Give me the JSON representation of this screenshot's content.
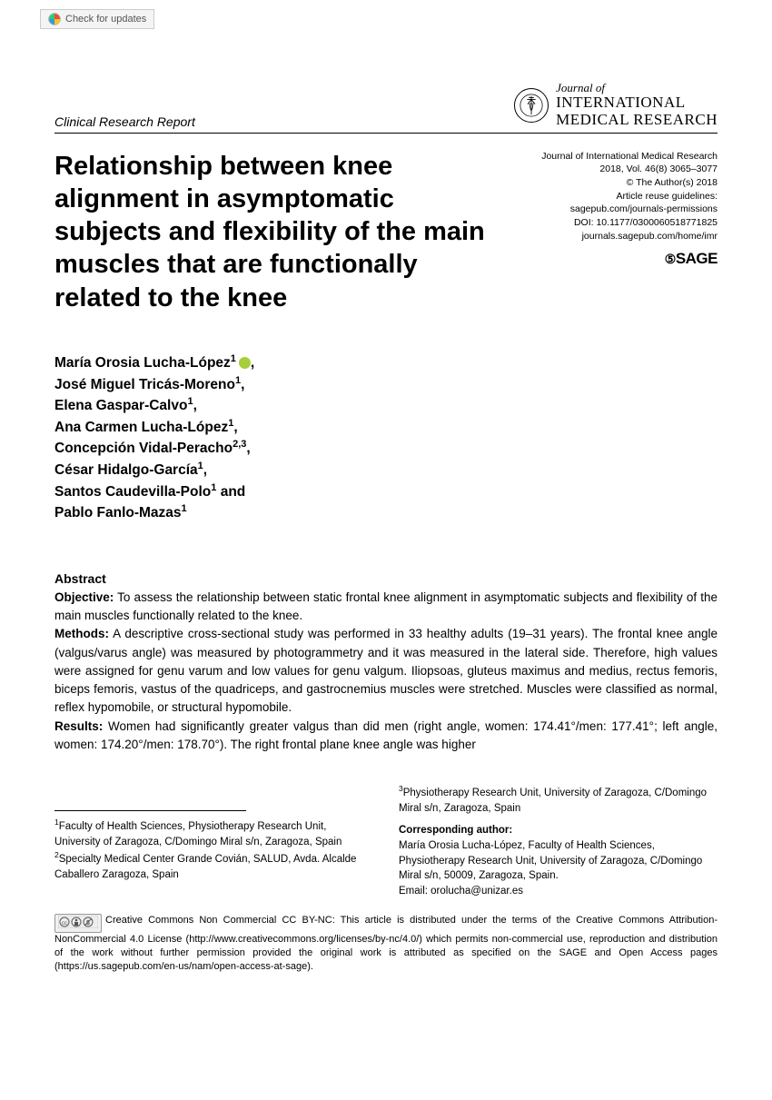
{
  "check_updates": "Check for updates",
  "report_type": "Clinical Research Report",
  "journal": {
    "prefix": "Journal of",
    "line1": "INTERNATIONAL",
    "line2": "MEDICAL RESEARCH"
  },
  "meta": {
    "line1": "Journal of International Medical Research",
    "line2": "2018, Vol. 46(8) 3065–3077",
    "line3": "© The Author(s) 2018",
    "line4": "Article reuse guidelines:",
    "line5": "sagepub.com/journals-permissions",
    "line6": "DOI: 10.1177/0300060518771825",
    "line7": "journals.sagepub.com/home/imr",
    "publisher": "SAGE"
  },
  "title": "Relationship between knee alignment in asymptomatic subjects and flexibility of the main muscles that are functionally related to the knee",
  "authors": [
    {
      "name": "María Orosia Lucha-López",
      "affil": "1",
      "orcid": true,
      "sep": ","
    },
    {
      "name": "José Miguel Tricás-Moreno",
      "affil": "1",
      "sep": ","
    },
    {
      "name": "Elena Gaspar-Calvo",
      "affil": "1",
      "sep": ","
    },
    {
      "name": "Ana Carmen Lucha-López",
      "affil": "1",
      "sep": ","
    },
    {
      "name": "Concepción Vidal-Peracho",
      "affil": "2,3",
      "sep": ","
    },
    {
      "name": "César Hidalgo-García",
      "affil": "1",
      "sep": ","
    },
    {
      "name": "Santos Caudevilla-Polo",
      "affil": "1",
      "sep": " and"
    },
    {
      "name": "Pablo Fanlo-Mazas",
      "affil": "1",
      "sep": ""
    }
  ],
  "abstract": {
    "heading": "Abstract",
    "objective_label": "Objective:",
    "objective": " To assess the relationship between static frontal knee alignment in asymptomatic subjects and flexibility of the main muscles functionally related to the knee.",
    "methods_label": "Methods:",
    "methods": " A descriptive cross-sectional study was performed in 33 healthy adults (19–31 years). The frontal knee angle (valgus/varus angle) was measured by photogrammetry and it was measured in the lateral side. Therefore, high values were assigned for genu varum and low values for genu valgum. Iliopsoas, gluteus maximus and medius, rectus femoris, biceps femoris, vastus of the quadriceps, and gastrocnemius muscles were stretched. Muscles were classified as normal, reflex hypomobile, or structural hypomobile.",
    "results_label": "Results:",
    "results": " Women had significantly greater valgus than did men (right angle, women: 174.41°/men: 177.41°; left angle, women: 174.20°/men: 178.70°). The right frontal plane knee angle was higher"
  },
  "affiliations": {
    "a1": "Faculty of Health Sciences, Physiotherapy Research Unit, University of Zaragoza, C/Domingo Miral s/n, Zaragoza, Spain",
    "a2": "Specialty Medical Center Grande Covián, SALUD, Avda. Alcalde Caballero Zaragoza, Spain",
    "a3": "Physiotherapy Research Unit, University of Zaragoza, C/Domingo Miral s/n, Zaragoza, Spain"
  },
  "corresponding": {
    "label": "Corresponding author:",
    "text": "María Orosia Lucha-López, Faculty of Health Sciences, Physiotherapy Research Unit, University of Zaragoza, C/Domingo Miral s/n, 50009, Zaragoza, Spain.",
    "email_label": "Email: ",
    "email": "orolucha@unizar.es"
  },
  "license": {
    "badge": "cc ① ⑤",
    "text": "Creative Commons Non Commercial CC BY-NC: This article is distributed under the terms of the Creative Commons Attribution-NonCommercial 4.0 License (http://www.creativecommons.org/licenses/by-nc/4.0/) which permits non-commercial use, reproduction and distribution of the work without further permission provided the original work is attributed as specified on the SAGE and Open Access pages (https://us.sagepub.com/en-us/nam/open-access-at-sage)."
  }
}
